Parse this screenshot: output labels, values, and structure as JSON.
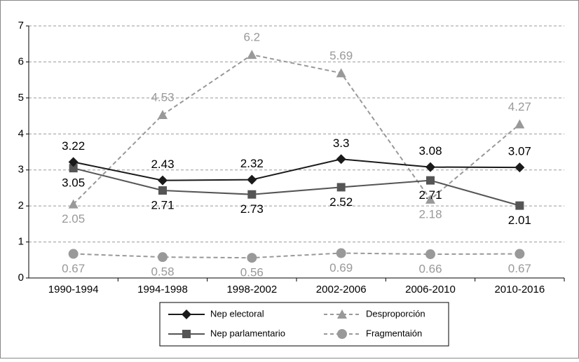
{
  "chart_data": {
    "type": "line",
    "categories": [
      "1990-1994",
      "1994-1998",
      "1998-2002",
      "2002-2006",
      "2006-2010",
      "2010-2016"
    ],
    "ylim": [
      0,
      7
    ],
    "yticks": [
      0,
      1,
      2,
      3,
      4,
      5,
      6,
      7
    ],
    "grid": true,
    "series": [
      {
        "name": "Nep electoral",
        "color": "#1a1a1a",
        "marker": "diamond",
        "dash": false,
        "values": [
          3.22,
          2.71,
          2.73,
          3.3,
          3.08,
          3.07
        ]
      },
      {
        "name": "Nep parlamentario",
        "color": "#555555",
        "marker": "square",
        "dash": false,
        "values": [
          3.05,
          2.43,
          2.32,
          2.52,
          2.71,
          2.01
        ]
      },
      {
        "name": "Desproporción",
        "color": "#999999",
        "marker": "triangle",
        "dash": true,
        "values": [
          2.05,
          4.53,
          6.2,
          5.69,
          2.18,
          4.27
        ]
      },
      {
        "name": "Fragmentaión",
        "color": "#999999",
        "marker": "circle",
        "dash": true,
        "values": [
          0.67,
          0.58,
          0.56,
          0.69,
          0.66,
          0.67
        ]
      }
    ]
  }
}
